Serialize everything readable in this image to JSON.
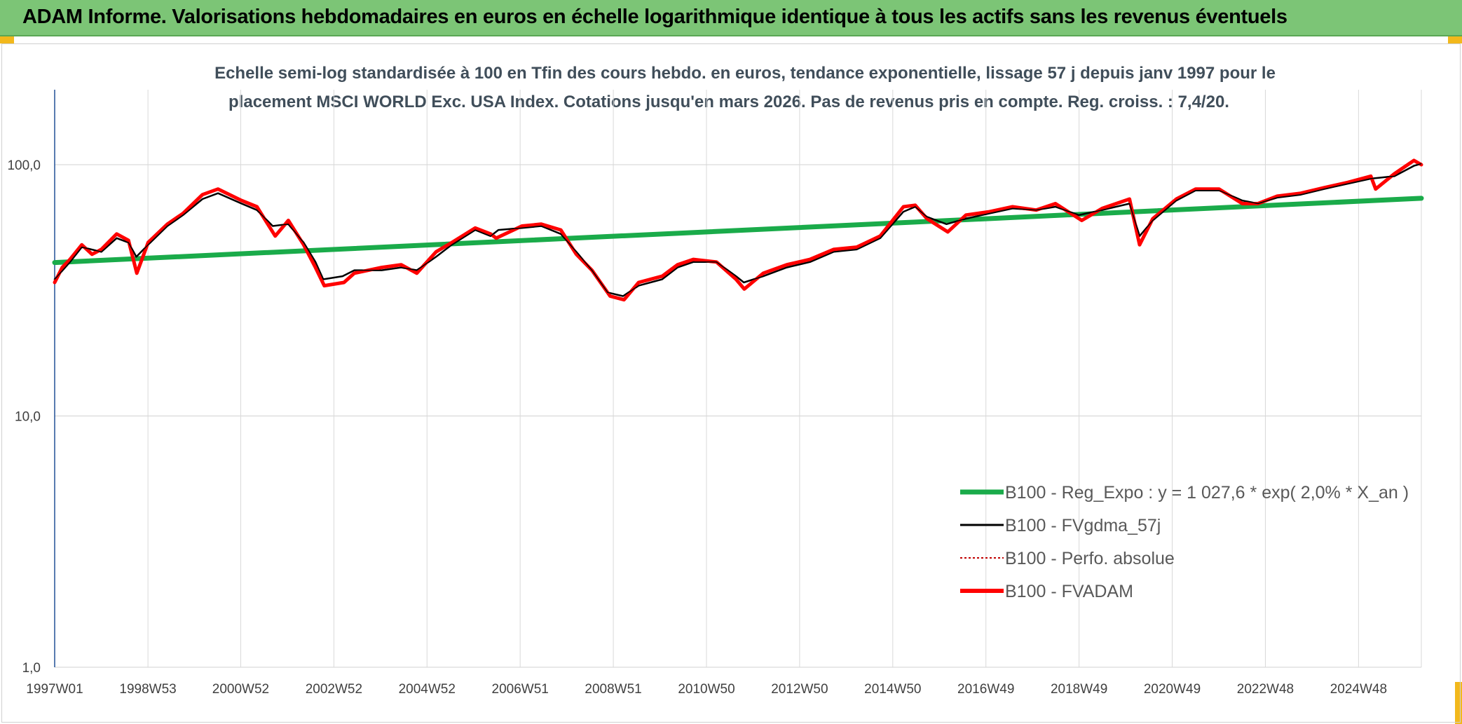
{
  "header": {
    "title": "ADAM Informe. Valorisations hebdomadaires en euros en échelle logarithmique identique à tous les actifs sans les revenus éventuels"
  },
  "colors": {
    "banner": "#7cc576",
    "accent_corner": "#f2b81c",
    "reg_expo": "#1aab4a",
    "fvgdma": "#000000",
    "perfo": "#c00000",
    "fvadam": "#ff0000",
    "grid": "#d9d9d9",
    "axis": "#2e5a9c"
  },
  "chart_data": {
    "type": "line",
    "title_lines": [
      "Echelle semi-log standardisée à 100 en Tfin des cours hebdo. en euros, tendance exponentielle, lissage 57 j depuis janv 1997 pour le",
      "placement MSCI WORLD Exc. USA Index. Cotations jusqu'en mars 2026. Pas de revenus pris en compte. Reg. croiss. : 7,4/20."
    ],
    "x_axis": {
      "type": "date",
      "range": [
        "1997-01-01",
        "2026-03-31"
      ],
      "tick_labels": [
        "1997W01",
        "1998W53",
        "2000W52",
        "2002W52",
        "2004W52",
        "2006W51",
        "2008W51",
        "2010W50",
        "2012W50",
        "2014W50",
        "2016W49",
        "2018W49",
        "2020W49",
        "2022W48",
        "2024W48"
      ],
      "tick_dates": [
        "1997-01-01",
        "1998-12-31",
        "2000-12-25",
        "2002-12-23",
        "2004-12-20",
        "2006-12-18",
        "2008-12-15",
        "2010-12-13",
        "2012-12-10",
        "2014-12-08",
        "2016-12-05",
        "2018-12-03",
        "2020-11-30",
        "2022-11-28",
        "2024-11-25"
      ]
    },
    "y_axis": {
      "scale": "log",
      "range": [
        1,
        100
      ],
      "tick_values": [
        1,
        10,
        100
      ],
      "tick_labels": [
        "1,0",
        "10,0",
        "100,0"
      ]
    },
    "grid": true,
    "legend_position": "bottom-right",
    "legend": [
      "B100 - Reg_Expo : y = 1 027,6 * exp( 2,0% *  X_an )",
      "B100 - FVgdma_57j",
      "B100 - Perfo. absolue",
      "B100 - FVADAM"
    ],
    "series": [
      {
        "name": "B100 - Reg_Expo : y = 1 027,6 * exp( 2,0% *  X_an )",
        "x": [
          "1997-01-01",
          "2026-03-31"
        ],
        "y": [
          40.8,
          73.5
        ]
      },
      {
        "name": "B100 - FVgdma_57j",
        "x": [
          "1997-01-01",
          "1997-05-01",
          "1997-08-01",
          "1998-01-01",
          "1998-05-01",
          "1998-08-01",
          "1998-10-01",
          "1999-01-01",
          "1999-06-01",
          "1999-10-01",
          "2000-03-01",
          "2000-07-01",
          "2001-01-01",
          "2001-05-01",
          "2001-09-01",
          "2002-01-01",
          "2002-05-01",
          "2002-08-01",
          "2002-10-01",
          "2003-03-01",
          "2003-06-01",
          "2004-01-01",
          "2004-06-01",
          "2004-10-01",
          "2005-03-01",
          "2005-07-01",
          "2006-01-01",
          "2006-05-01",
          "2006-07-01",
          "2007-01-01",
          "2007-06-01",
          "2007-11-01",
          "2008-03-01",
          "2008-07-01",
          "2008-11-01",
          "2009-03-01",
          "2009-07-01",
          "2010-01-01",
          "2010-05-01",
          "2010-09-01",
          "2011-03-01",
          "2011-08-01",
          "2011-10-01",
          "2012-03-01",
          "2012-09-01",
          "2013-03-01",
          "2013-09-01",
          "2014-03-01",
          "2014-09-01",
          "2015-03-01",
          "2015-06-01",
          "2015-09-01",
          "2016-02-01",
          "2016-07-01",
          "2017-01-01",
          "2017-07-01",
          "2018-01-01",
          "2018-06-01",
          "2018-12-01",
          "2019-06-01",
          "2020-01-01",
          "2020-03-20",
          "2020-07-01",
          "2021-01-01",
          "2021-06-01",
          "2021-12-01",
          "2022-06-01",
          "2022-10-01",
          "2023-03-01",
          "2023-09-01",
          "2024-03-01",
          "2024-09-01",
          "2025-03-01",
          "2025-09-01",
          "2026-02-01",
          "2026-03-31"
        ],
        "y": [
          35,
          41,
          47,
          45,
          51,
          49,
          43,
          48,
          57,
          63,
          73,
          77,
          70,
          66,
          57,
          58,
          49,
          41,
          35,
          36,
          38,
          38,
          39,
          38,
          43,
          48,
          55,
          52,
          55,
          56,
          57,
          53,
          45,
          38,
          31,
          30,
          33,
          35,
          39,
          41,
          41,
          36,
          34,
          36,
          39,
          41,
          45,
          46,
          51,
          65,
          68,
          62,
          58,
          61,
          64,
          67,
          66,
          68,
          63,
          66,
          70,
          52,
          60,
          72,
          79,
          79,
          72,
          70,
          74,
          76,
          80,
          84,
          88,
          90,
          99,
          101
        ]
      },
      {
        "name": "B100 - FVADAM",
        "x": [
          "1997-01-01",
          "1997-03-01",
          "1997-05-01",
          "1997-08-01",
          "1997-10-20",
          "1998-01-01",
          "1998-05-01",
          "1998-08-01",
          "1998-10-05",
          "1999-01-01",
          "1999-06-01",
          "1999-10-01",
          "2000-03-01",
          "2000-07-01",
          "2001-01-01",
          "2001-05-01",
          "2001-09-21",
          "2002-01-01",
          "2002-05-01",
          "2002-08-01",
          "2002-10-09",
          "2003-03-12",
          "2003-06-01",
          "2004-01-01",
          "2004-06-01",
          "2004-10-01",
          "2005-03-01",
          "2005-07-01",
          "2006-01-01",
          "2006-05-01",
          "2006-06-14",
          "2007-01-01",
          "2007-06-01",
          "2007-11-01",
          "2008-03-01",
          "2008-07-01",
          "2008-11-20",
          "2009-03-09",
          "2009-07-01",
          "2010-01-01",
          "2010-05-01",
          "2010-09-01",
          "2011-03-01",
          "2011-08-01",
          "2011-10-04",
          "2012-03-01",
          "2012-09-01",
          "2013-03-01",
          "2013-09-01",
          "2014-03-01",
          "2014-09-01",
          "2015-03-01",
          "2015-06-01",
          "2015-09-01",
          "2016-02-11",
          "2016-07-01",
          "2017-01-01",
          "2017-07-01",
          "2018-01-01",
          "2018-06-01",
          "2018-12-24",
          "2019-06-01",
          "2020-01-01",
          "2020-03-20",
          "2020-07-01",
          "2021-01-01",
          "2021-06-01",
          "2021-12-01",
          "2022-06-01",
          "2022-10-01",
          "2023-03-01",
          "2023-09-01",
          "2024-03-01",
          "2024-09-01",
          "2025-03-01",
          "2025-04-08",
          "2025-09-01",
          "2026-02-01",
          "2026-03-31"
        ],
        "y": [
          34,
          39,
          42,
          48,
          44,
          46,
          53,
          50,
          37,
          49,
          58,
          64,
          76,
          80,
          72,
          68,
          52,
          60,
          48,
          39,
          33,
          34,
          37,
          39,
          40,
          37,
          45,
          49,
          56,
          53,
          51,
          57,
          58,
          55,
          44,
          38,
          30,
          29,
          34,
          36,
          40,
          42,
          41,
          35,
          32,
          37,
          40,
          42,
          46,
          47,
          52,
          68,
          69,
          61,
          54,
          63,
          65,
          68,
          66,
          70,
          60,
          67,
          73,
          48,
          61,
          73,
          80,
          80,
          70,
          70,
          75,
          77,
          81,
          85,
          90,
          80,
          92,
          104,
          100
        ]
      }
    ]
  }
}
